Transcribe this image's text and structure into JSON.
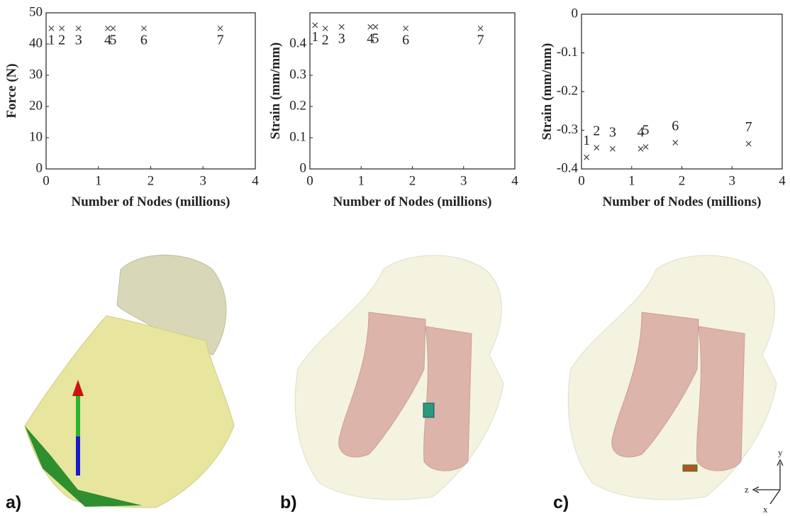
{
  "chart_data": [
    {
      "type": "scatter",
      "ylabel": "Force (N)",
      "xlabel": "Number of Nodes (millions)",
      "x": [
        0.1,
        0.3,
        0.62,
        1.18,
        1.28,
        1.87,
        3.33
      ],
      "values": [
        45,
        45,
        45,
        45,
        45,
        45,
        45
      ],
      "point_labels": [
        "1",
        "2",
        "3",
        "4",
        "5",
        "6",
        "7"
      ],
      "marker": "x",
      "color": "#444444",
      "xlim": [
        0,
        4
      ],
      "xticks": [
        0,
        1,
        2,
        3,
        4
      ],
      "ylim": [
        0,
        50
      ],
      "yticks": [
        0,
        10,
        20,
        30,
        40,
        50
      ]
    },
    {
      "type": "scatter",
      "ylabel": "Strain (mm/mm)",
      "xlabel": "Number of Nodes (millions)",
      "x": [
        0.1,
        0.3,
        0.62,
        1.18,
        1.28,
        1.87,
        3.33
      ],
      "values": [
        0.46,
        0.45,
        0.455,
        0.455,
        0.455,
        0.45,
        0.45
      ],
      "point_labels": [
        "1",
        "2",
        "3",
        "4",
        "5",
        "6",
        "7"
      ],
      "marker": "x",
      "color": "#444444",
      "xlim": [
        0,
        4
      ],
      "xticks": [
        0,
        1,
        2,
        3,
        4
      ],
      "ylim": [
        0,
        0.5
      ],
      "yticks": [
        0,
        0.1,
        0.2,
        0.3,
        0.4
      ]
    },
    {
      "type": "scatter",
      "ylabel": "Strain (mm/mm)",
      "xlabel": "Number of Nodes (millions)",
      "x": [
        0.1,
        0.3,
        0.62,
        1.18,
        1.28,
        1.87,
        3.33
      ],
      "values": [
        -0.37,
        -0.345,
        -0.348,
        -0.348,
        -0.343,
        -0.332,
        -0.335
      ],
      "point_labels": [
        "1",
        "2",
        "3",
        "4",
        "5",
        "6",
        "7"
      ],
      "marker": "x",
      "color": "#444444",
      "xlim": [
        0,
        4
      ],
      "xticks": [
        0,
        1,
        2,
        3,
        4
      ],
      "ylim": [
        -0.4,
        0
      ],
      "yticks": [
        0,
        -0.1,
        -0.2,
        -0.3,
        -0.4
      ]
    }
  ],
  "figure": {
    "panel_labels": [
      "a)",
      "b)",
      "c)"
    ],
    "axis_triad": [
      "x",
      "y",
      "z"
    ]
  }
}
